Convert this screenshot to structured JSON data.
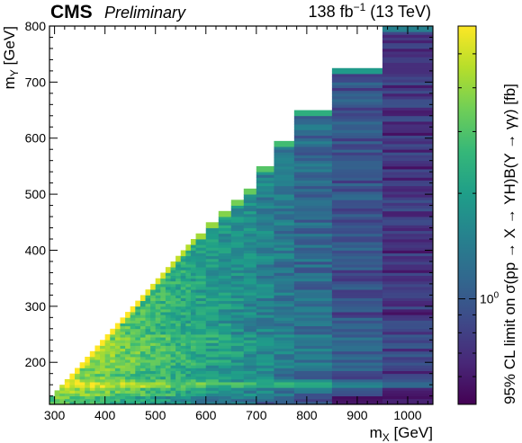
{
  "chart_data": {
    "type": "heatmap",
    "header": {
      "experiment": "CMS",
      "status": "Preliminary",
      "lumi_value": "138 fb",
      "lumi_exponent": "−1",
      "energy": "(13 TeV)"
    },
    "xlabel_main": "m",
    "xlabel_sub": "X",
    "xlabel_unit": "[GeV]",
    "ylabel_main": "m",
    "ylabel_sub": "Y",
    "ylabel_unit": "[GeV]",
    "zlabel": "95% CL limit on σ(pp → X → YH)B(Y → γγ) [fb]",
    "xlim": [
      290,
      1050
    ],
    "ylim": [
      125,
      800
    ],
    "xticks": [
      300,
      400,
      500,
      600,
      700,
      800,
      900,
      1000
    ],
    "yticks": [
      200,
      300,
      400,
      500,
      600,
      700,
      800
    ],
    "zscale": "log",
    "zlim": [
      0.5,
      6.0
    ],
    "ztick_main": "10",
    "ztick_exp": "0",
    "ztick_value": 1.0,
    "colormap": "viridis",
    "colormap_stops": [
      "#440154",
      "#482878",
      "#3e4a89",
      "#31688e",
      "#26828e",
      "#1f9e89",
      "#35b779",
      "#6ece58",
      "#b5de2b",
      "#fde725"
    ],
    "x_bins": [
      {
        "x0": 290,
        "x1": 300,
        "ymax": 140
      },
      {
        "x0": 300,
        "x1": 310,
        "ymax": 150
      },
      {
        "x0": 310,
        "x1": 320,
        "ymax": 160
      },
      {
        "x0": 320,
        "x1": 330,
        "ymax": 170
      },
      {
        "x0": 330,
        "x1": 340,
        "ymax": 180
      },
      {
        "x0": 340,
        "x1": 350,
        "ymax": 190
      },
      {
        "x0": 350,
        "x1": 360,
        "ymax": 200
      },
      {
        "x0": 360,
        "x1": 370,
        "ymax": 210
      },
      {
        "x0": 370,
        "x1": 380,
        "ymax": 220
      },
      {
        "x0": 380,
        "x1": 390,
        "ymax": 230
      },
      {
        "x0": 390,
        "x1": 400,
        "ymax": 240
      },
      {
        "x0": 400,
        "x1": 410,
        "ymax": 250
      },
      {
        "x0": 410,
        "x1": 420,
        "ymax": 260
      },
      {
        "x0": 420,
        "x1": 430,
        "ymax": 270
      },
      {
        "x0": 430,
        "x1": 440,
        "ymax": 280
      },
      {
        "x0": 440,
        "x1": 450,
        "ymax": 290
      },
      {
        "x0": 450,
        "x1": 460,
        "ymax": 300
      },
      {
        "x0": 460,
        "x1": 470,
        "ymax": 310
      },
      {
        "x0": 470,
        "x1": 480,
        "ymax": 320
      },
      {
        "x0": 480,
        "x1": 490,
        "ymax": 330
      },
      {
        "x0": 490,
        "x1": 500,
        "ymax": 340
      },
      {
        "x0": 500,
        "x1": 510,
        "ymax": 350
      },
      {
        "x0": 510,
        "x1": 520,
        "ymax": 360
      },
      {
        "x0": 520,
        "x1": 530,
        "ymax": 370
      },
      {
        "x0": 530,
        "x1": 540,
        "ymax": 380
      },
      {
        "x0": 540,
        "x1": 550,
        "ymax": 390
      },
      {
        "x0": 550,
        "x1": 560,
        "ymax": 400
      },
      {
        "x0": 560,
        "x1": 570,
        "ymax": 410
      },
      {
        "x0": 570,
        "x1": 580,
        "ymax": 420
      },
      {
        "x0": 580,
        "x1": 600,
        "ymax": 430
      },
      {
        "x0": 600,
        "x1": 625,
        "ymax": 450
      },
      {
        "x0": 625,
        "x1": 650,
        "ymax": 470
      },
      {
        "x0": 650,
        "x1": 675,
        "ymax": 490
      },
      {
        "x0": 675,
        "x1": 700,
        "ymax": 510
      },
      {
        "x0": 700,
        "x1": 735,
        "ymax": 550
      },
      {
        "x0": 735,
        "x1": 775,
        "ymax": 595
      },
      {
        "x0": 775,
        "x1": 850,
        "ymax": 650
      },
      {
        "x0": 850,
        "x1": 950,
        "ymax": 725
      },
      {
        "x0": 950,
        "x1": 1050,
        "ymax": 800
      }
    ]
  }
}
